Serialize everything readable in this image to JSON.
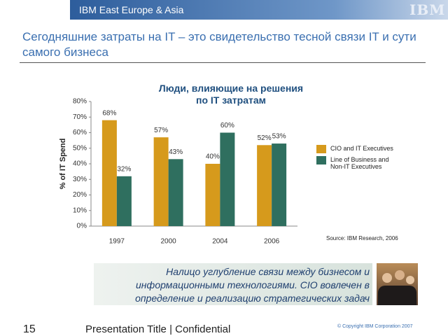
{
  "header": {
    "region": "IBM East Europe & Asia",
    "logo": "IBM"
  },
  "title": "Сегодняшние затраты на IT – это свидетельство тесной связи IT и сути самого бизнеса",
  "chart_data": {
    "type": "bar",
    "title": "Люди, влияющие на решения по IT затратам",
    "y_label": "% of IT Spend",
    "categories": [
      "1997",
      "2000",
      "2004",
      "2006"
    ],
    "series": [
      {
        "name": "CIO and IT Executives",
        "color": "#d69a1c",
        "values": [
          68,
          57,
          40,
          52
        ],
        "value_labels": [
          "68%",
          "57%",
          "40%",
          "52%"
        ]
      },
      {
        "name": "Line of Business and Non-IT Executives",
        "color": "#2f6f5f",
        "values": [
          32,
          43,
          60,
          53
        ],
        "value_labels": [
          "32%",
          "43%",
          "60%",
          "53%"
        ]
      }
    ],
    "ylim": [
      0,
      80
    ],
    "yticks": [
      {
        "value": 0,
        "label": "0%"
      },
      {
        "value": 10,
        "label": "10%"
      },
      {
        "value": 20,
        "label": "20%"
      },
      {
        "value": 30,
        "label": "30%"
      },
      {
        "value": 40,
        "label": "40%"
      },
      {
        "value": 50,
        "label": "50%"
      },
      {
        "value": 60,
        "label": "60%"
      },
      {
        "value": 70,
        "label": "70%"
      },
      {
        "value": 80,
        "label": "80%"
      }
    ],
    "grid": false,
    "legend": "right"
  },
  "source": "Source: IBM Research, 2006",
  "callout": "Налицо углубление связи между бизнесом и информационными технологиями. CIO вовлечен в определение и реализацию стратегических задач",
  "footer": {
    "page": "15",
    "title": "Presentation Title | Confidential",
    "copyright": "© Copyright IBM Corporation 2007"
  }
}
